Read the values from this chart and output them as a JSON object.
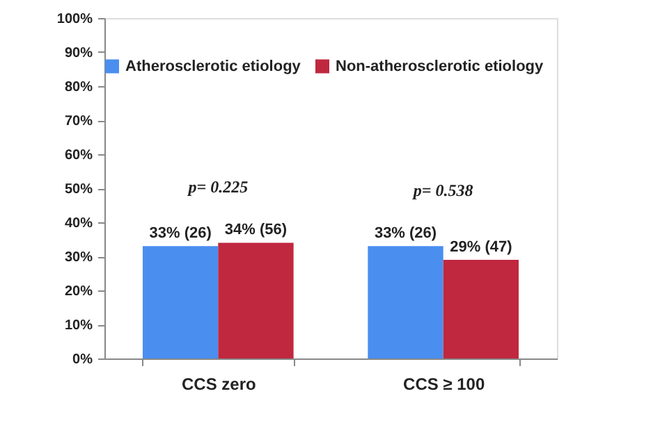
{
  "chart_data": {
    "type": "bar",
    "categories": [
      "CCS zero",
      "CCS ≥ 100"
    ],
    "series": [
      {
        "name": "Atherosclerotic etiology",
        "color": "#4a8ef0",
        "values": [
          33,
          33
        ],
        "value_labels": [
          "33% (26)",
          "33% (26)"
        ]
      },
      {
        "name": "Non-atherosclerotic etiology",
        "color": "#c0283f",
        "values": [
          34,
          29
        ],
        "value_labels": [
          "34% (56)",
          "29% (47)"
        ]
      }
    ],
    "ylim": [
      0,
      100
    ],
    "yticks": [
      {
        "value": 0,
        "label": "0%"
      },
      {
        "value": 10,
        "label": "10%"
      },
      {
        "value": 20,
        "label": "20%"
      },
      {
        "value": 30,
        "label": "30%"
      },
      {
        "value": 40,
        "label": "40%"
      },
      {
        "value": 50,
        "label": "50%"
      },
      {
        "value": 60,
        "label": "60%"
      },
      {
        "value": 70,
        "label": "70%"
      },
      {
        "value": 80,
        "label": "80%"
      },
      {
        "value": 90,
        "label": "90%"
      },
      {
        "value": 100,
        "label": "100%"
      }
    ],
    "annotations": [
      "p= 0.225",
      "p= 0.538"
    ],
    "grid": false,
    "legend": "top"
  }
}
